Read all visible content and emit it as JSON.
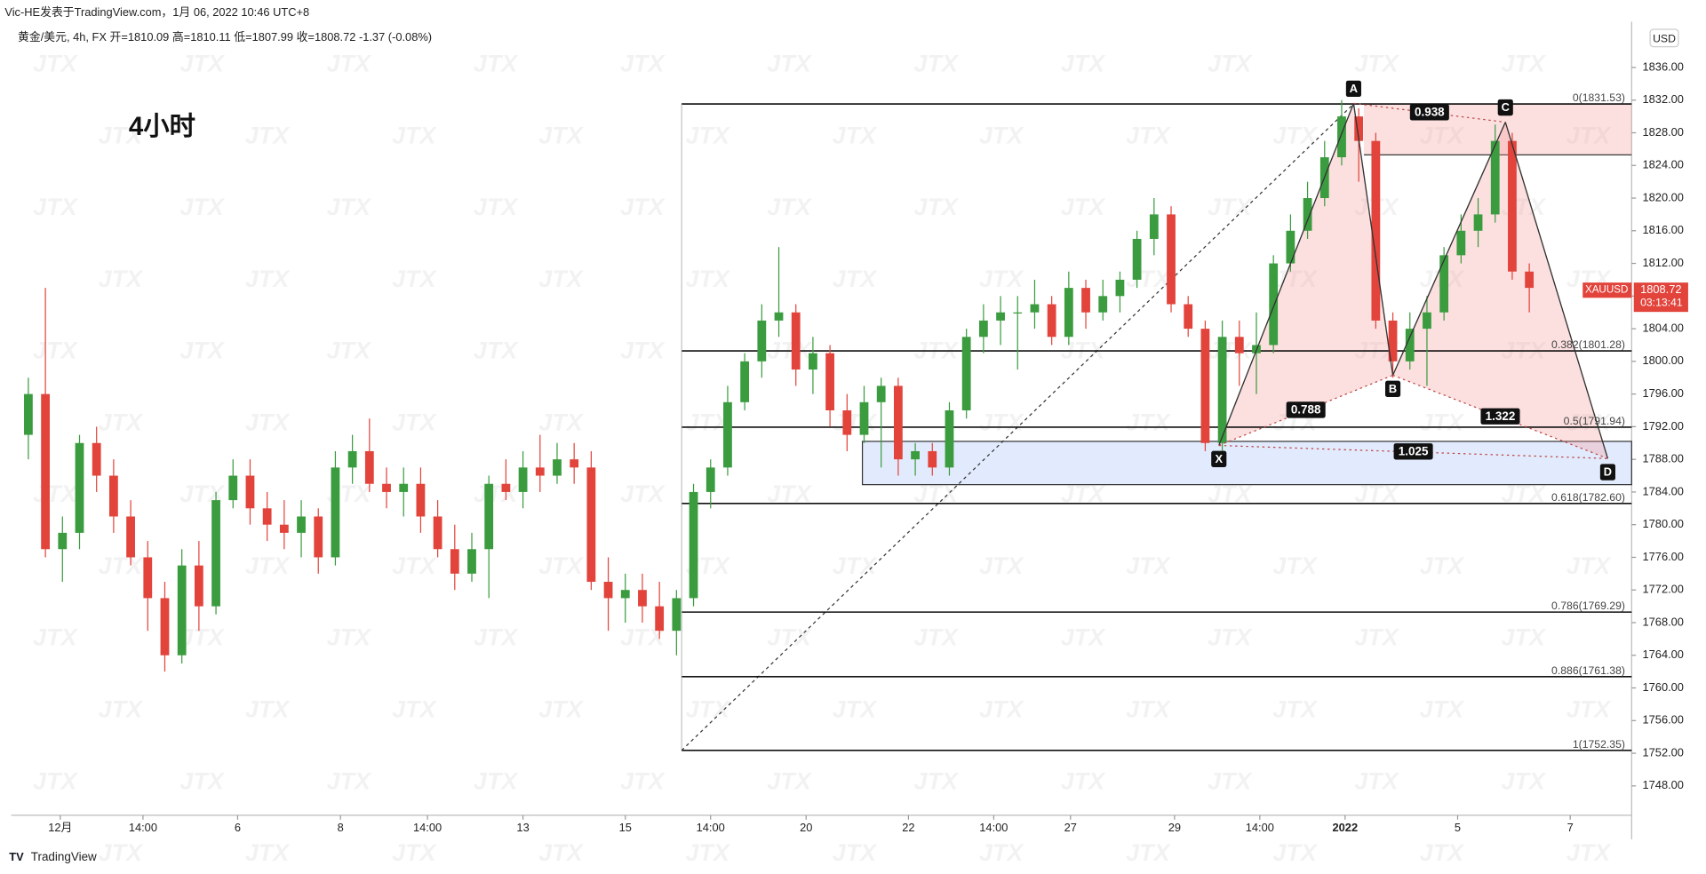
{
  "header": {
    "publisher": "Vic-HE发表于TradingView.com，1月 06, 2022 10:46 UTC+8",
    "symbol_line": "黄金/美元, 4h, FX  开=1810.09  高=1810.11  低=1807.99  收=1808.72  -1.37 (-0.08%)",
    "watermark": "JTX",
    "footer": "TradingView"
  },
  "chart_data": {
    "type": "candlestick",
    "title": "4小时",
    "currency": "USD",
    "symbol": "XAUUSD",
    "last_price": 1808.72,
    "countdown": "03:13:41",
    "up_color": "#3b9c3f",
    "down_color": "#e2443c",
    "open": [
      1791,
      1796,
      1777,
      1779,
      1790,
      1786,
      1781,
      1776,
      1771,
      1764,
      1775,
      1770,
      1783,
      1786,
      1782,
      1780,
      1779,
      1781,
      1776,
      1787,
      1789,
      1785,
      1784,
      1785,
      1781,
      1777,
      1774,
      1777,
      1785,
      1784,
      1787,
      1786,
      1788,
      1787,
      1773,
      1771,
      1772,
      1770,
      1767,
      1771,
      1784,
      1787,
      1795,
      1800,
      1805,
      1806,
      1799,
      1801,
      1794,
      1791,
      1795,
      1797,
      1788,
      1789,
      1787,
      1794,
      1803,
      1805,
      1806,
      1806,
      1807,
      1803,
      1809,
      1806,
      1808,
      1810,
      1815,
      1818,
      1807,
      1804,
      1790,
      1803,
      1801,
      1802,
      1812,
      1816,
      1820,
      1825,
      1830,
      1827,
      1805,
      1800,
      1804,
      1806,
      1813,
      1816,
      1818,
      1827,
      1811
    ],
    "high": [
      1798,
      1809,
      1781,
      1791,
      1792,
      1788,
      1783,
      1778,
      1773,
      1777,
      1778,
      1784,
      1788,
      1788,
      1784,
      1783,
      1783,
      1782,
      1789,
      1791,
      1793,
      1787,
      1787,
      1787,
      1783,
      1780,
      1779,
      1786,
      1788,
      1789,
      1791,
      1790,
      1790,
      1789,
      1776,
      1774,
      1774,
      1773,
      1772,
      1785,
      1788,
      1797,
      1801,
      1807,
      1814,
      1807,
      1803,
      1802,
      1796,
      1797,
      1798,
      1798,
      1790,
      1790,
      1795,
      1804,
      1807,
      1808,
      1808,
      1810,
      1808,
      1811,
      1810,
      1810,
      1811,
      1816,
      1820,
      1819,
      1808,
      1805,
      1805,
      1805,
      1806,
      1813,
      1818,
      1822,
      1827,
      1832,
      1831,
      1828,
      1806,
      1806,
      1808,
      1814,
      1818,
      1820,
      1829,
      1828,
      1812
    ],
    "low": [
      1788,
      1776,
      1773,
      1777,
      1784,
      1779,
      1775,
      1767,
      1762,
      1763,
      1767,
      1769,
      1782,
      1780,
      1778,
      1777,
      1776,
      1774,
      1775,
      1785,
      1784,
      1782,
      1781,
      1779,
      1776,
      1772,
      1773,
      1771,
      1783,
      1782,
      1784,
      1785,
      1785,
      1772,
      1767,
      1768,
      1768,
      1766,
      1764,
      1770,
      1782,
      1786,
      1794,
      1798,
      1803,
      1797,
      1796,
      1792,
      1789,
      1790,
      1787,
      1786,
      1786,
      1786,
      1786,
      1793,
      1801,
      1802,
      1799,
      1804,
      1802,
      1802,
      1804,
      1805,
      1806,
      1809,
      1813,
      1806,
      1803,
      1789,
      1789,
      1797,
      1796,
      1801,
      1811,
      1815,
      1819,
      1824,
      1822,
      1804,
      1798,
      1799,
      1797,
      1805,
      1812,
      1814,
      1817,
      1810,
      1806
    ],
    "close": [
      1796,
      1777,
      1779,
      1790,
      1786,
      1781,
      1776,
      1771,
      1764,
      1775,
      1770,
      1783,
      1786,
      1782,
      1780,
      1779,
      1781,
      1776,
      1787,
      1789,
      1785,
      1784,
      1785,
      1781,
      1777,
      1774,
      1777,
      1785,
      1784,
      1787,
      1786,
      1788,
      1787,
      1773,
      1771,
      1772,
      1770,
      1767,
      1771,
      1784,
      1787,
      1795,
      1800,
      1805,
      1806,
      1799,
      1801,
      1794,
      1791,
      1795,
      1797,
      1788,
      1789,
      1787,
      1794,
      1803,
      1805,
      1806,
      1806,
      1807,
      1803,
      1809,
      1806,
      1808,
      1810,
      1815,
      1818,
      1807,
      1804,
      1790,
      1803,
      1801,
      1802,
      1812,
      1816,
      1820,
      1825,
      1830,
      1827,
      1805,
      1800,
      1804,
      1806,
      1813,
      1816,
      1818,
      1827,
      1811,
      1809
    ],
    "xlim": [
      -1,
      94
    ],
    "xticks": [
      {
        "value": 1.87,
        "label": "12月"
      },
      {
        "value": 6.72,
        "label": "14:00"
      },
      {
        "value": 12.27,
        "label": "6"
      },
      {
        "value": 18.3,
        "label": "8"
      },
      {
        "value": 23.4,
        "label": "14:00"
      },
      {
        "value": 29.0,
        "label": "13"
      },
      {
        "value": 35.0,
        "label": "15"
      },
      {
        "value": 40.0,
        "label": "14:00"
      },
      {
        "value": 45.6,
        "label": "20"
      },
      {
        "value": 51.6,
        "label": "22"
      },
      {
        "value": 56.6,
        "label": "14:00"
      },
      {
        "value": 61.1,
        "label": "27"
      },
      {
        "value": 67.2,
        "label": "29"
      },
      {
        "value": 72.2,
        "label": "14:00"
      },
      {
        "value": 77.2,
        "label": "2022"
      },
      {
        "value": 83.8,
        "label": "5"
      },
      {
        "value": 90.4,
        "label": "7"
      }
    ],
    "ylim": [
      1744.4,
      1841.6
    ],
    "yticks": [
      {
        "value": 1748,
        "label": "1748.00"
      },
      {
        "value": 1752,
        "label": "1752.00"
      },
      {
        "value": 1756,
        "label": "1756.00"
      },
      {
        "value": 1760,
        "label": "1760.00"
      },
      {
        "value": 1764,
        "label": "1764.00"
      },
      {
        "value": 1768,
        "label": "1768.00"
      },
      {
        "value": 1772,
        "label": "1772.00"
      },
      {
        "value": 1776,
        "label": "1776.00"
      },
      {
        "value": 1780,
        "label": "1780.00"
      },
      {
        "value": 1784,
        "label": "1784.00"
      },
      {
        "value": 1788,
        "label": "1788.00"
      },
      {
        "value": 1792,
        "label": "1792.00"
      },
      {
        "value": 1796,
        "label": "1796.00"
      },
      {
        "value": 1800,
        "label": "1800.00"
      },
      {
        "value": 1804,
        "label": "1804.00"
      },
      {
        "value": 1808,
        "label": "1808.00"
      },
      {
        "value": 1812,
        "label": "1812.00"
      },
      {
        "value": 1816,
        "label": "1816.00"
      },
      {
        "value": 1820,
        "label": "1820.00"
      },
      {
        "value": 1824,
        "label": "1824.00"
      },
      {
        "value": 1828,
        "label": "1828.00"
      },
      {
        "value": 1832,
        "label": "1832.00"
      },
      {
        "value": 1836,
        "label": "1836.00"
      }
    ],
    "grid": false,
    "fib": {
      "x_start": 38.3,
      "x_end": 77.7,
      "levels": [
        {
          "value": 1831.53,
          "label": "0(1831.53)"
        },
        {
          "value": 1801.28,
          "label": "0.382(1801.28)"
        },
        {
          "value": 1791.94,
          "label": "0.5(1791.94)"
        },
        {
          "value": 1782.6,
          "label": "0.618(1782.60)"
        },
        {
          "value": 1769.29,
          "label": "0.786(1769.29)"
        },
        {
          "value": 1761.38,
          "label": "0.886(1761.38)"
        },
        {
          "value": 1752.35,
          "label": "1(1752.35)"
        }
      ]
    },
    "zones": [
      {
        "x_start": 48.9,
        "top": 1790.2,
        "bottom": 1784.9,
        "color": "rgba(190,210,250,0.45)"
      },
      {
        "x_start": 78.3,
        "top": 1831.6,
        "bottom": 1825.3,
        "color": "rgba(244,150,150,0.3)"
      }
    ],
    "pattern": {
      "color": "rgba(244,150,150,0.3)",
      "points": [
        {
          "name": "X",
          "x": 69.8,
          "y": 1789.7
        },
        {
          "name": "A",
          "x": 77.7,
          "y": 1831.6
        },
        {
          "name": "B",
          "x": 80.0,
          "y": 1798.3
        },
        {
          "name": "C",
          "x": 86.6,
          "y": 1829.3
        },
        {
          "name": "D",
          "x": 92.6,
          "y": 1788.1
        }
      ],
      "ratios": {
        "AC": 0.938,
        "XB": 0.788,
        "BD": 1.322,
        "XD": 1.025
      }
    }
  }
}
